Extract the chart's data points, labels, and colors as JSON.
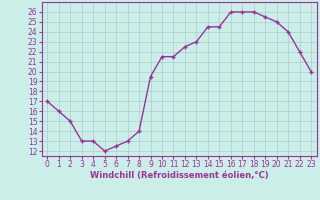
{
  "x": [
    0,
    1,
    2,
    3,
    4,
    5,
    6,
    7,
    8,
    9,
    10,
    11,
    12,
    13,
    14,
    15,
    16,
    17,
    18,
    19,
    20,
    21,
    22,
    23
  ],
  "y": [
    17,
    16,
    15,
    13,
    13,
    12,
    12.5,
    13,
    14,
    19.5,
    21.5,
    21.5,
    22.5,
    23,
    24.5,
    24.5,
    26,
    26,
    26,
    25.5,
    25,
    24,
    22,
    20
  ],
  "line_color": "#993399",
  "marker": "+",
  "marker_size": 3,
  "marker_linewidth": 1.0,
  "bg_color": "#cceee8",
  "grid_color": "#aacccc",
  "xlabel": "Windchill (Refroidissement éolien,°C)",
  "xlabel_color": "#993399",
  "tick_color": "#993399",
  "ylim": [
    11.5,
    27
  ],
  "yticks": [
    12,
    13,
    14,
    15,
    16,
    17,
    18,
    19,
    20,
    21,
    22,
    23,
    24,
    25,
    26
  ],
  "xlim": [
    -0.5,
    23.5
  ],
  "xticks": [
    0,
    1,
    2,
    3,
    4,
    5,
    6,
    7,
    8,
    9,
    10,
    11,
    12,
    13,
    14,
    15,
    16,
    17,
    18,
    19,
    20,
    21,
    22,
    23
  ],
  "tick_fontsize": 5.5,
  "xlabel_fontsize": 6.0,
  "xlabel_fontweight": "bold",
  "linewidth": 1.0
}
